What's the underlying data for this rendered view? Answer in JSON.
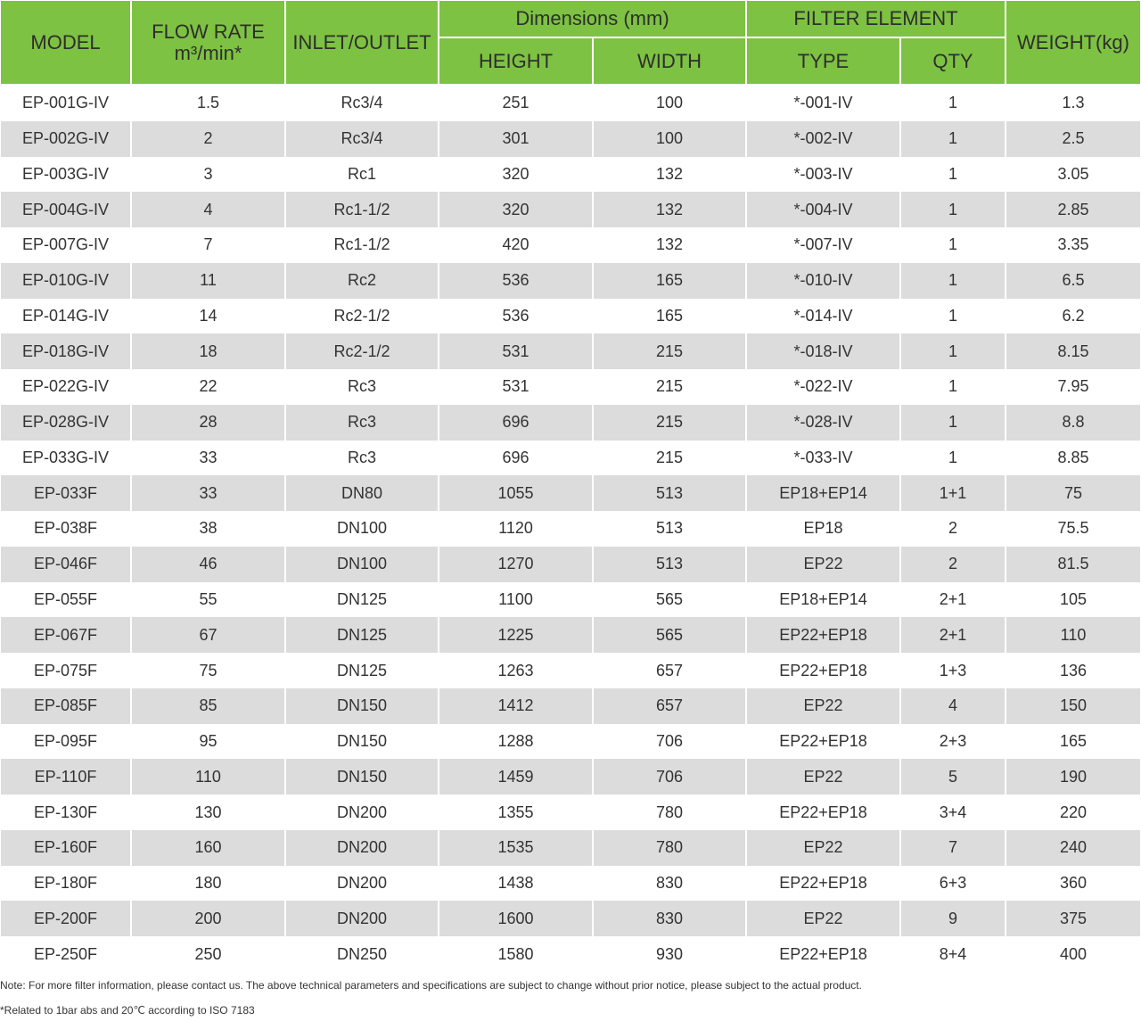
{
  "header": {
    "model": "MODEL",
    "flow_rate": {
      "label": "FLOW RATE",
      "unit": "m³/min*"
    },
    "inlet_outlet": "INLET/OUTLET",
    "dimensions": {
      "label": "Dimensions (mm)",
      "height": "HEIGHT",
      "width": "WIDTH"
    },
    "filter_element": {
      "label": "FILTER ELEMENT",
      "type": "TYPE",
      "qty": "QTY"
    },
    "weight": "WEIGHT(kg)"
  },
  "table": {
    "rows": [
      [
        "EP-001G-IV",
        "1.5",
        "Rc3/4",
        "251",
        "100",
        "*-001-IV",
        "1",
        "1.3"
      ],
      [
        "EP-002G-IV",
        "2",
        "Rc3/4",
        "301",
        "100",
        "*-002-IV",
        "1",
        "2.5"
      ],
      [
        "EP-003G-IV",
        "3",
        "Rc1",
        "320",
        "132",
        "*-003-IV",
        "1",
        "3.05"
      ],
      [
        "EP-004G-IV",
        "4",
        "Rc1-1/2",
        "320",
        "132",
        "*-004-IV",
        "1",
        "2.85"
      ],
      [
        "EP-007G-IV",
        "7",
        "Rc1-1/2",
        "420",
        "132",
        "*-007-IV",
        "1",
        "3.35"
      ],
      [
        "EP-010G-IV",
        "11",
        "Rc2",
        "536",
        "165",
        "*-010-IV",
        "1",
        "6.5"
      ],
      [
        "EP-014G-IV",
        "14",
        "Rc2-1/2",
        "536",
        "165",
        "*-014-IV",
        "1",
        "6.2"
      ],
      [
        "EP-018G-IV",
        "18",
        "Rc2-1/2",
        "531",
        "215",
        "*-018-IV",
        "1",
        "8.15"
      ],
      [
        "EP-022G-IV",
        "22",
        "Rc3",
        "531",
        "215",
        "*-022-IV",
        "1",
        "7.95"
      ],
      [
        "EP-028G-IV",
        "28",
        "Rc3",
        "696",
        "215",
        "*-028-IV",
        "1",
        "8.8"
      ],
      [
        "EP-033G-IV",
        "33",
        "Rc3",
        "696",
        "215",
        "*-033-IV",
        "1",
        "8.85"
      ],
      [
        "EP-033F",
        "33",
        "DN80",
        "1055",
        "513",
        "EP18+EP14",
        "1+1",
        "75"
      ],
      [
        "EP-038F",
        "38",
        "DN100",
        "1120",
        "513",
        "EP18",
        "2",
        "75.5"
      ],
      [
        "EP-046F",
        "46",
        "DN100",
        "1270",
        "513",
        "EP22",
        "2",
        "81.5"
      ],
      [
        "EP-055F",
        "55",
        "DN125",
        "1100",
        "565",
        "EP18+EP14",
        "2+1",
        "105"
      ],
      [
        "EP-067F",
        "67",
        "DN125",
        "1225",
        "565",
        "EP22+EP18",
        "2+1",
        "110"
      ],
      [
        "EP-075F",
        "75",
        "DN125",
        "1263",
        "657",
        "EP22+EP18",
        "1+3",
        "136"
      ],
      [
        "EP-085F",
        "85",
        "DN150",
        "1412",
        "657",
        "EP22",
        "4",
        "150"
      ],
      [
        "EP-095F",
        "95",
        "DN150",
        "1288",
        "706",
        "EP22+EP18",
        "2+3",
        "165"
      ],
      [
        "EP-110F",
        "110",
        "DN150",
        "1459",
        "706",
        "EP22",
        "5",
        "190"
      ],
      [
        "EP-130F",
        "130",
        "DN200",
        "1355",
        "780",
        "EP22+EP18",
        "3+4",
        "220"
      ],
      [
        "EP-160F",
        "160",
        "DN200",
        "1535",
        "780",
        "EP22",
        "7",
        "240"
      ],
      [
        "EP-180F",
        "180",
        "DN200",
        "1438",
        "830",
        "EP22+EP18",
        "6+3",
        "360"
      ],
      [
        "EP-200F",
        "200",
        "DN200",
        "1600",
        "830",
        "EP22",
        "9",
        "375"
      ],
      [
        "EP-250F",
        "250",
        "DN250",
        "1580",
        "930",
        "EP22+EP18",
        "8+4",
        "400"
      ]
    ]
  },
  "notes": [
    "Note: For more filter information, please contact us. The above technical parameters and specifications are subject to change without prior notice, please subject to the actual product.",
    "*Related to 1bar abs and 20℃ according to ISO 7183"
  ]
}
